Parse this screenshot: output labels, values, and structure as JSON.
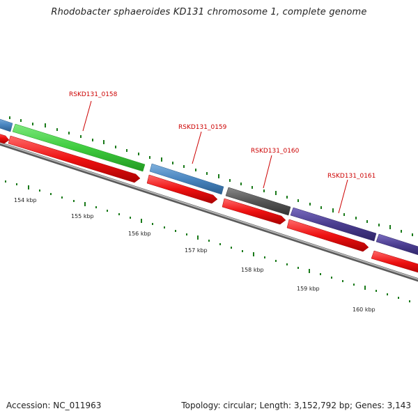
{
  "title": "Rhodobacter sphaeroides KD131 chromosome 1, complete genome",
  "footer": {
    "accession": "Accession: NC_011963",
    "summary": "Topology: circular; Length: 3,152,792 bp; Genes: 3,143"
  },
  "scale_labels": [
    "154 kbp",
    "155 kbp",
    "156 kbp",
    "157 kbp",
    "158 kbp",
    "159 kbp",
    "160 kbp"
  ],
  "gene_labels": [
    "RSKD131_0158",
    "RSKD131_0159",
    "RSKD131_0160",
    "RSKD131_0161"
  ],
  "colors": {
    "label_red": "#cc0000",
    "tick_green": "#1a7a1a",
    "green_gene": "#3fcc3f",
    "blue_gene": "#4a86c0",
    "gray_gene": "#555555",
    "purple_gene": "#4a3d8f",
    "red_cds": "#ee1111",
    "backbone": "#8a8a8a"
  }
}
